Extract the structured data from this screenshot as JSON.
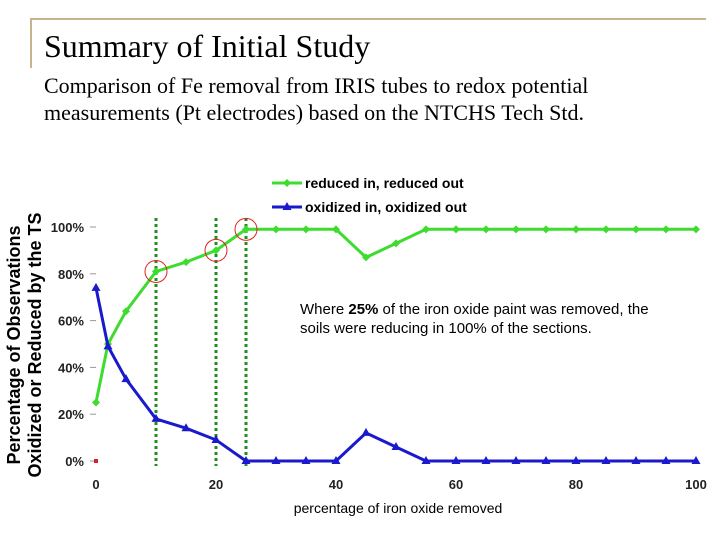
{
  "slide": {
    "title": "Summary of Initial Study",
    "subtitle": "Comparison of Fe removal from IRIS tubes to redox potential measurements (Pt electrodes) based on the NTCHS Tech Std."
  },
  "annotation": {
    "pre": "Where ",
    "bold": "25%",
    "post": " of the iron oxide paint was removed, the soils were reducing in 100% of the sections."
  },
  "chart_data": {
    "type": "line",
    "xlabel": "percentage of iron oxide removed",
    "ylabel_lines": [
      "Percentage of Observations",
      "Oxidized or Reduced by the TS"
    ],
    "xlim": [
      0,
      100
    ],
    "ylim": [
      0,
      1
    ],
    "x_ticks": [
      0,
      20,
      40,
      60,
      80,
      100
    ],
    "y_ticks": [
      0,
      0.2,
      0.4,
      0.6,
      0.8,
      1.0
    ],
    "y_tick_labels": [
      "0%",
      "20%",
      "40%",
      "60%",
      "80%",
      "100%"
    ],
    "legend_position": "top",
    "series": [
      {
        "name": "reduced in, reduced out",
        "color": "#3ddc2e",
        "marker": "diamond",
        "x": [
          0,
          2,
          5,
          10,
          15,
          20,
          25,
          30,
          35,
          40,
          45,
          50,
          55,
          60,
          65,
          70,
          75,
          80,
          85,
          90,
          95,
          100
        ],
        "y": [
          0.25,
          0.5,
          0.64,
          0.81,
          0.85,
          0.9,
          0.99,
          0.99,
          0.99,
          0.99,
          0.87,
          0.93,
          0.99,
          0.99,
          0.99,
          0.99,
          0.99,
          0.99,
          0.99,
          0.99,
          0.99,
          0.99
        ]
      },
      {
        "name": "oxidized in, oxidized out",
        "color": "#1a1acc",
        "marker": "triangle",
        "x": [
          0,
          2,
          5,
          10,
          15,
          20,
          25,
          30,
          35,
          40,
          45,
          50,
          55,
          60,
          65,
          70,
          75,
          80,
          85,
          90,
          95,
          100
        ],
        "y": [
          0.74,
          0.49,
          0.35,
          0.18,
          0.14,
          0.09,
          0.0,
          0.0,
          0.0,
          0.0,
          0.12,
          0.06,
          0.0,
          0.0,
          0.0,
          0.0,
          0.0,
          0.0,
          0.0,
          0.0,
          0.0,
          0.0
        ]
      }
    ],
    "reference_lines_x": [
      10,
      20,
      25
    ],
    "highlight_circles": [
      {
        "x": 10,
        "y": 0.81
      },
      {
        "x": 20,
        "y": 0.9
      },
      {
        "x": 25,
        "y": 0.99
      }
    ],
    "origin_marker_color": "#e02020"
  }
}
